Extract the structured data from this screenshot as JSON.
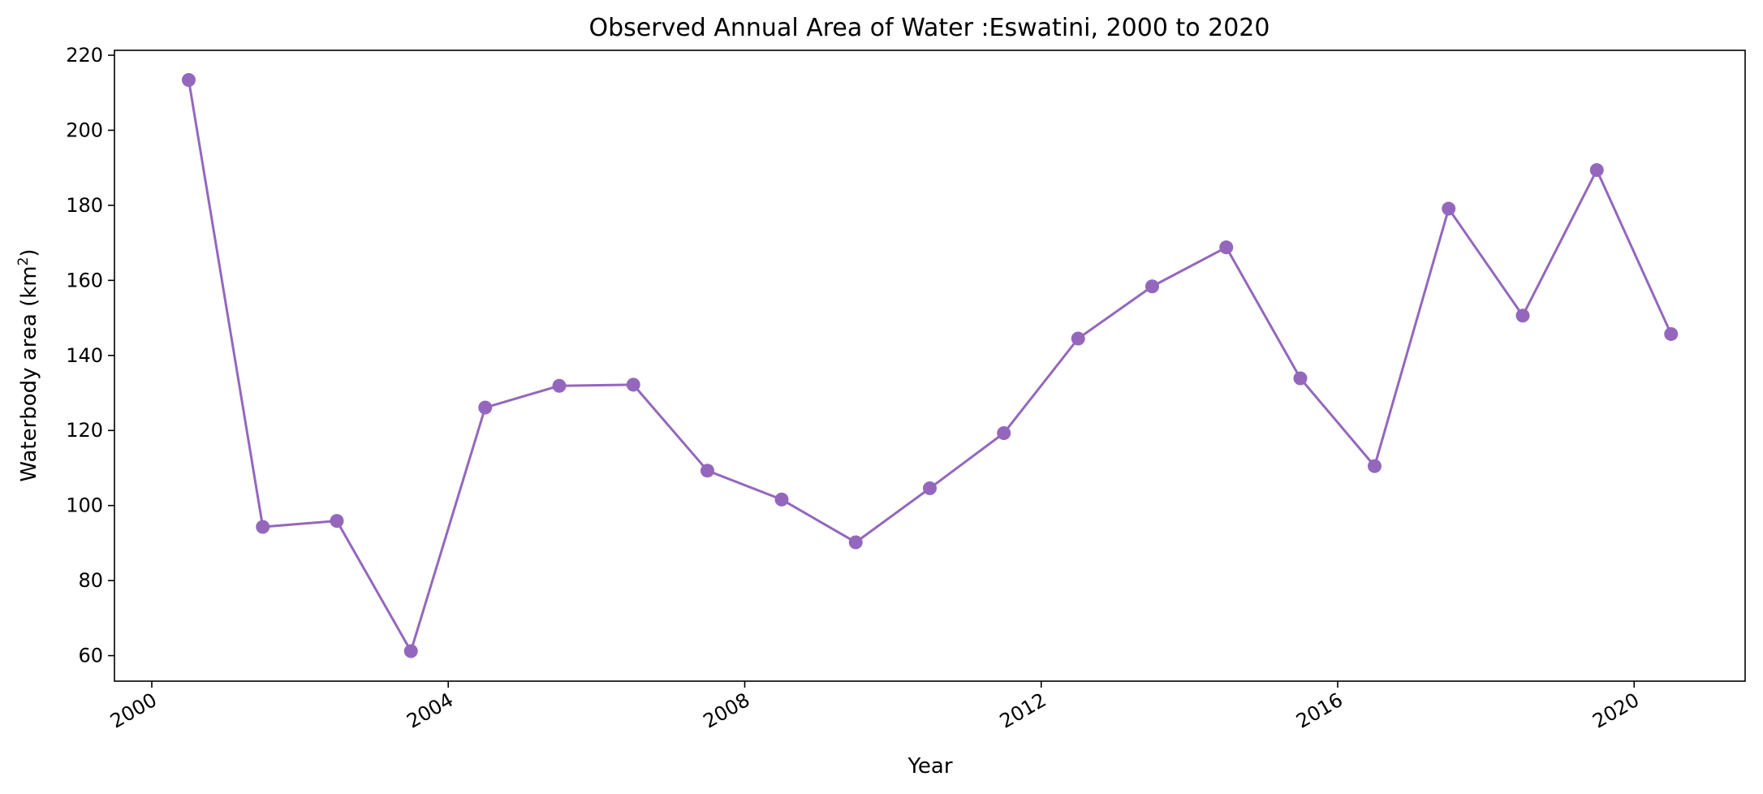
{
  "chart_data": {
    "type": "line",
    "title": "Observed Annual Area of Water :Eswatini, 2000 to 2020",
    "xlabel": "Year",
    "ylabel": "Waterbody area (km²)",
    "x": [
      "2000-07-01",
      "2001-07-01",
      "2002-07-01",
      "2003-07-01",
      "2004-07-01",
      "2005-07-01",
      "2006-07-01",
      "2007-07-01",
      "2008-07-01",
      "2009-07-01",
      "2010-07-01",
      "2011-07-01",
      "2012-07-01",
      "2013-07-01",
      "2014-07-01",
      "2015-07-01",
      "2016-07-01",
      "2017-07-01",
      "2018-07-01",
      "2019-07-01",
      "2020-07-01"
    ],
    "series": [
      {
        "values": [
          213.4,
          94.3,
          95.9,
          61.2,
          126.1,
          131.9,
          132.2,
          109.3,
          101.6,
          90.2,
          104.6,
          119.3,
          144.5,
          158.4,
          168.8,
          133.9,
          110.5,
          179.1,
          150.6,
          189.4,
          145.7
        ]
      }
    ],
    "xlim": [
      "1999-07-01",
      "2021-07-01"
    ],
    "ylim": [
      53.2,
      221.3
    ],
    "x_ticks": [
      "2000",
      "2004",
      "2008",
      "2012",
      "2016",
      "2020"
    ],
    "y_ticks": [
      60,
      80,
      100,
      120,
      140,
      160,
      180,
      200,
      220
    ],
    "grid": false,
    "legend": "none",
    "colors": {
      "line": "#9467bd",
      "marker": "#9467bd"
    }
  }
}
